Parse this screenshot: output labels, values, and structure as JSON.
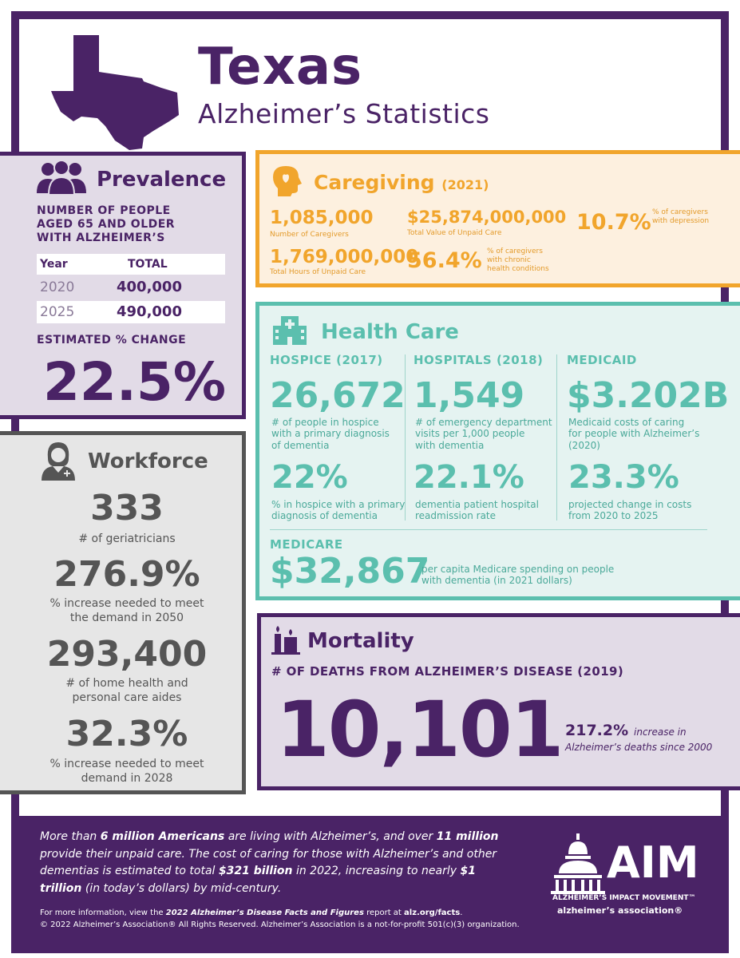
{
  "header": {
    "title": "Texas",
    "subtitle": "Alzheimer’s Statistics"
  },
  "prevalence": {
    "title": "Prevalence",
    "subtitle_lines": [
      "NUMBER OF PEOPLE",
      "AGED 65 AND OLDER",
      "WITH ALZHEIMER’S"
    ],
    "table_headers": [
      "Year",
      "TOTAL"
    ],
    "rows": [
      {
        "year": "2020",
        "total": "400,000"
      },
      {
        "year": "2025",
        "total": "490,000"
      }
    ],
    "change_label": "ESTIMATED % CHANGE",
    "change_value": "22.5%"
  },
  "workforce": {
    "title": "Workforce",
    "stats": [
      {
        "value": "333",
        "label_lines": [
          "# of geriatricians"
        ]
      },
      {
        "value": "276.9%",
        "label_lines": [
          "% increase needed to meet",
          "the demand in 2050"
        ]
      },
      {
        "value": "293,400",
        "label_lines": [
          "# of home health and",
          "personal care aides"
        ]
      },
      {
        "value": "32.3%",
        "label_lines": [
          "% increase needed to meet",
          "demand in 2028"
        ]
      }
    ]
  },
  "caregiving": {
    "title": "Caregiving",
    "year": "(2021)",
    "stats": [
      {
        "value": "1,085,000",
        "label": "Number of Caregivers"
      },
      {
        "value": "$25,874,000,000",
        "label": "Total Value of Unpaid Care"
      },
      {
        "value": "10.7%",
        "label_lines": [
          "% of caregivers",
          "with depression"
        ]
      },
      {
        "value": "1,769,000,000",
        "label": "Total Hours of Unpaid Care"
      },
      {
        "value": "56.4%",
        "label_lines": [
          "% of caregivers",
          "with chronic",
          "health conditions"
        ]
      }
    ]
  },
  "healthcare": {
    "title": "Health Care",
    "columns": [
      {
        "heading": "HOSPICE (2017)",
        "top_value": "26,672",
        "top_label_lines": [
          "# of people in hospice",
          "with a primary diagnosis",
          "of dementia"
        ],
        "bottom_value": "22%",
        "bottom_label_lines": [
          "% in hospice with a primary",
          "diagnosis of dementia"
        ]
      },
      {
        "heading": "HOSPITALS (2018)",
        "top_value": "1,549",
        "top_label_lines": [
          "# of emergency department",
          "visits per 1,000 people",
          "with dementia"
        ],
        "bottom_value": "22.1%",
        "bottom_label_lines": [
          "dementia patient hospital",
          "readmission rate"
        ]
      },
      {
        "heading": "MEDICAID",
        "top_value": "$3.202B",
        "top_label_lines": [
          "Medicaid costs of caring",
          "for people with Alzheimer’s",
          "(2020)"
        ],
        "bottom_value": "23.3%",
        "bottom_label_lines": [
          "projected change in costs",
          "from 2020 to 2025"
        ]
      }
    ],
    "medicare": {
      "heading": "MEDICARE",
      "value": "$32,867",
      "label_lines": [
        "per capita Medicare spending on people",
        "with dementia (in 2021 dollars)"
      ]
    }
  },
  "mortality": {
    "title": "Mortality",
    "subtitle": "# OF DEATHS FROM ALZHEIMER’S DISEASE (2019)",
    "value": "10,101",
    "increase_value": "217.2%",
    "increase_label_1": "increase in",
    "increase_label_2": "Alzheimer’s deaths since 2000"
  },
  "footer": {
    "p1": "More than ",
    "p1b": "6 million Americans",
    "p2": " are living with Alzheimer’s, and over ",
    "p2b": "11 million",
    "p3": " provide their unpaid care. The cost of caring for those with Alzheimer’s and other dementias is estimated to total ",
    "p3b": "$321 billion",
    "p4": " in 2022, increasing to nearly ",
    "p4b": "$1 trillion",
    "p5": " (in today’s dollars) by mid-century.",
    "info_1": "For more information, view the ",
    "info_b": "2022 Alzheimer’s Disease Facts and Figures",
    "info_2": " report at ",
    "info_url": "alz.org/facts",
    "info_3": ".",
    "copyright": "© 2022 Alzheimer’s Association® All Rights Reserved. Alzheimer’s Association is a not-for-profit 501(c)(3) organization.",
    "logo_big": "AIM",
    "logo_sub": "ALZHEIMER’S IMPACT MOVEMENT™",
    "logo_assoc": "alzheimer’s association®"
  },
  "colors": {
    "purple": "#4a2366",
    "orange": "#f1a52c",
    "teal": "#5bbfae",
    "gray": "#555555"
  }
}
